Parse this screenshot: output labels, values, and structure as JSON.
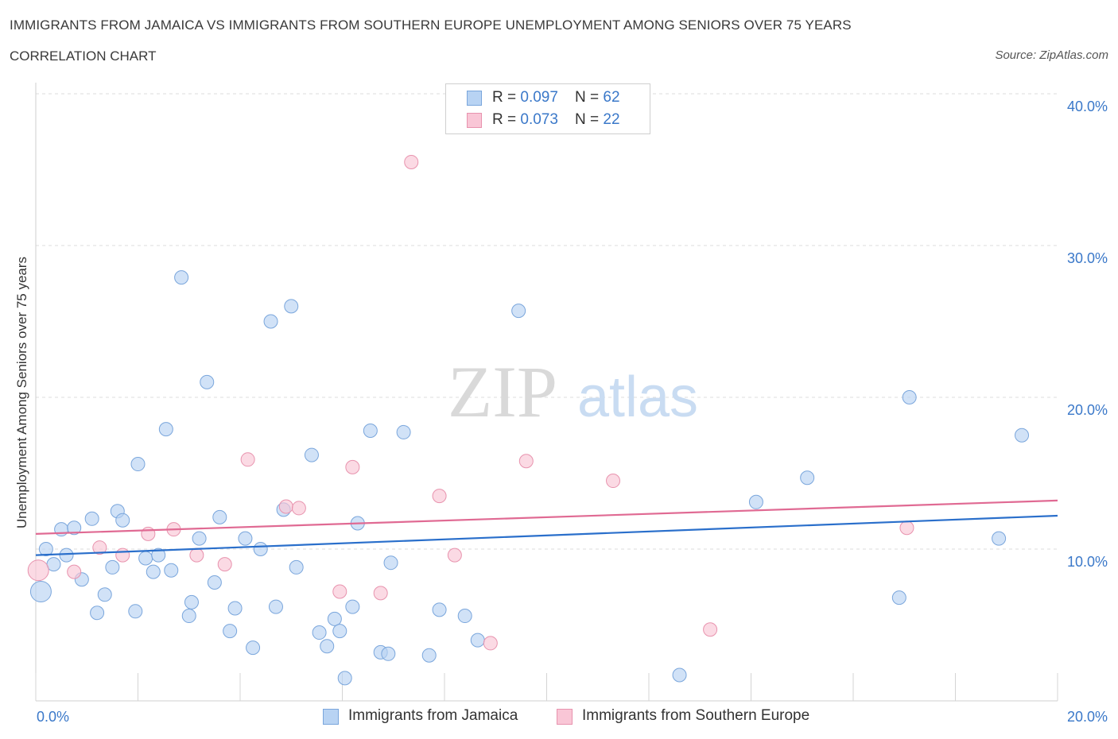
{
  "header": {
    "title": "IMMIGRANTS FROM JAMAICA VS IMMIGRANTS FROM SOUTHERN EUROPE UNEMPLOYMENT AMONG SENIORS OVER 75 YEARS",
    "subtitle": "CORRELATION CHART",
    "source": "Source: ZipAtlas.com"
  },
  "legend": {
    "r_label": "R = ",
    "n_label": "N = ",
    "series1": {
      "r": "0.097",
      "n": "62"
    },
    "series2": {
      "r": "0.073",
      "n": "22"
    }
  },
  "watermark": {
    "zip": "ZIP",
    "atlas": "atlas"
  },
  "colors": {
    "series1_fill": "#b8d3f3",
    "series1_stroke": "#7aa6dc",
    "series1_line": "#2a6fcb",
    "series2_fill": "#f9c6d6",
    "series2_stroke": "#e893ae",
    "series2_line": "#e06a93",
    "tick_text": "#3a78c9",
    "grid": "#dcdcdc"
  },
  "chart_data": {
    "type": "scatter",
    "title": "IMMIGRANTS FROM JAMAICA VS IMMIGRANTS FROM SOUTHERN EUROPE UNEMPLOYMENT AMONG SENIORS OVER 75 YEARS",
    "xlabel": "",
    "ylabel": "Unemployment Among Seniors over 75 years",
    "xlim": [
      0,
      20
    ],
    "ylim": [
      0,
      40
    ],
    "x_tick_labels": {
      "min": "0.0%",
      "max": "20.0%"
    },
    "y_ticks": [
      {
        "value": 10,
        "label": "10.0%"
      },
      {
        "value": 20,
        "label": "20.0%"
      },
      {
        "value": 30,
        "label": "30.0%"
      },
      {
        "value": 40,
        "label": "40.0%"
      }
    ],
    "grid": true,
    "series": [
      {
        "name": "Immigrants from Jamaica",
        "trend": {
          "x0": 0,
          "y0": 9.6,
          "x1": 20,
          "y1": 12.2
        },
        "points": [
          {
            "x": 0.1,
            "y": 7.2,
            "big": true
          },
          {
            "x": 0.2,
            "y": 10.0
          },
          {
            "x": 0.35,
            "y": 9.0
          },
          {
            "x": 0.5,
            "y": 11.3
          },
          {
            "x": 0.6,
            "y": 9.6
          },
          {
            "x": 0.75,
            "y": 11.4
          },
          {
            "x": 0.9,
            "y": 8.0
          },
          {
            "x": 1.1,
            "y": 12.0
          },
          {
            "x": 1.2,
            "y": 5.8
          },
          {
            "x": 1.35,
            "y": 7.0
          },
          {
            "x": 1.5,
            "y": 8.8
          },
          {
            "x": 1.6,
            "y": 12.5
          },
          {
            "x": 1.7,
            "y": 11.9
          },
          {
            "x": 1.95,
            "y": 5.9
          },
          {
            "x": 2.0,
            "y": 15.6
          },
          {
            "x": 2.15,
            "y": 9.4
          },
          {
            "x": 2.3,
            "y": 8.5
          },
          {
            "x": 2.4,
            "y": 9.6
          },
          {
            "x": 2.55,
            "y": 17.9
          },
          {
            "x": 2.65,
            "y": 8.6
          },
          {
            "x": 2.85,
            "y": 27.9
          },
          {
            "x": 3.0,
            "y": 5.6
          },
          {
            "x": 3.05,
            "y": 6.5
          },
          {
            "x": 3.2,
            "y": 10.7
          },
          {
            "x": 3.35,
            "y": 21.0
          },
          {
            "x": 3.5,
            "y": 7.8
          },
          {
            "x": 3.6,
            "y": 12.1
          },
          {
            "x": 3.8,
            "y": 4.6
          },
          {
            "x": 3.9,
            "y": 6.1
          },
          {
            "x": 4.1,
            "y": 10.7
          },
          {
            "x": 4.25,
            "y": 3.5
          },
          {
            "x": 4.4,
            "y": 10.0
          },
          {
            "x": 4.6,
            "y": 25.0
          },
          {
            "x": 4.7,
            "y": 6.2
          },
          {
            "x": 4.85,
            "y": 12.6
          },
          {
            "x": 5.0,
            "y": 26.0
          },
          {
            "x": 5.1,
            "y": 8.8
          },
          {
            "x": 5.4,
            "y": 16.2
          },
          {
            "x": 5.55,
            "y": 4.5
          },
          {
            "x": 5.7,
            "y": 3.6
          },
          {
            "x": 5.85,
            "y": 5.4
          },
          {
            "x": 5.95,
            "y": 4.6
          },
          {
            "x": 6.05,
            "y": 1.5
          },
          {
            "x": 6.2,
            "y": 6.2
          },
          {
            "x": 6.3,
            "y": 11.7
          },
          {
            "x": 6.55,
            "y": 17.8
          },
          {
            "x": 6.75,
            "y": 3.2
          },
          {
            "x": 6.9,
            "y": 3.1
          },
          {
            "x": 6.95,
            "y": 9.1
          },
          {
            "x": 7.2,
            "y": 17.7
          },
          {
            "x": 7.7,
            "y": 3.0
          },
          {
            "x": 7.9,
            "y": 6.0
          },
          {
            "x": 8.4,
            "y": 5.6
          },
          {
            "x": 8.65,
            "y": 4.0
          },
          {
            "x": 9.45,
            "y": 25.7
          },
          {
            "x": 12.6,
            "y": 1.7
          },
          {
            "x": 14.1,
            "y": 13.1
          },
          {
            "x": 15.1,
            "y": 14.7
          },
          {
            "x": 16.9,
            "y": 6.8
          },
          {
            "x": 17.1,
            "y": 20.0
          },
          {
            "x": 18.85,
            "y": 10.7
          },
          {
            "x": 19.3,
            "y": 17.5
          }
        ]
      },
      {
        "name": "Immigrants from Southern Europe",
        "trend": {
          "x0": 0,
          "y0": 11.0,
          "x1": 20,
          "y1": 13.2
        },
        "points": [
          {
            "x": 0.05,
            "y": 8.6,
            "big": true
          },
          {
            "x": 0.75,
            "y": 8.5
          },
          {
            "x": 1.25,
            "y": 10.1
          },
          {
            "x": 1.7,
            "y": 9.6
          },
          {
            "x": 2.2,
            "y": 11.0
          },
          {
            "x": 2.7,
            "y": 11.3
          },
          {
            "x": 3.15,
            "y": 9.6
          },
          {
            "x": 3.7,
            "y": 9.0
          },
          {
            "x": 4.15,
            "y": 15.9
          },
          {
            "x": 4.9,
            "y": 12.8
          },
          {
            "x": 5.15,
            "y": 12.7
          },
          {
            "x": 5.95,
            "y": 7.2
          },
          {
            "x": 6.2,
            "y": 15.4
          },
          {
            "x": 6.75,
            "y": 7.1
          },
          {
            "x": 7.35,
            "y": 35.5
          },
          {
            "x": 7.9,
            "y": 13.5
          },
          {
            "x": 8.2,
            "y": 9.6
          },
          {
            "x": 8.9,
            "y": 3.8
          },
          {
            "x": 9.6,
            "y": 15.8
          },
          {
            "x": 11.3,
            "y": 14.5
          },
          {
            "x": 13.2,
            "y": 4.7
          },
          {
            "x": 17.05,
            "y": 11.4
          }
        ]
      }
    ]
  }
}
